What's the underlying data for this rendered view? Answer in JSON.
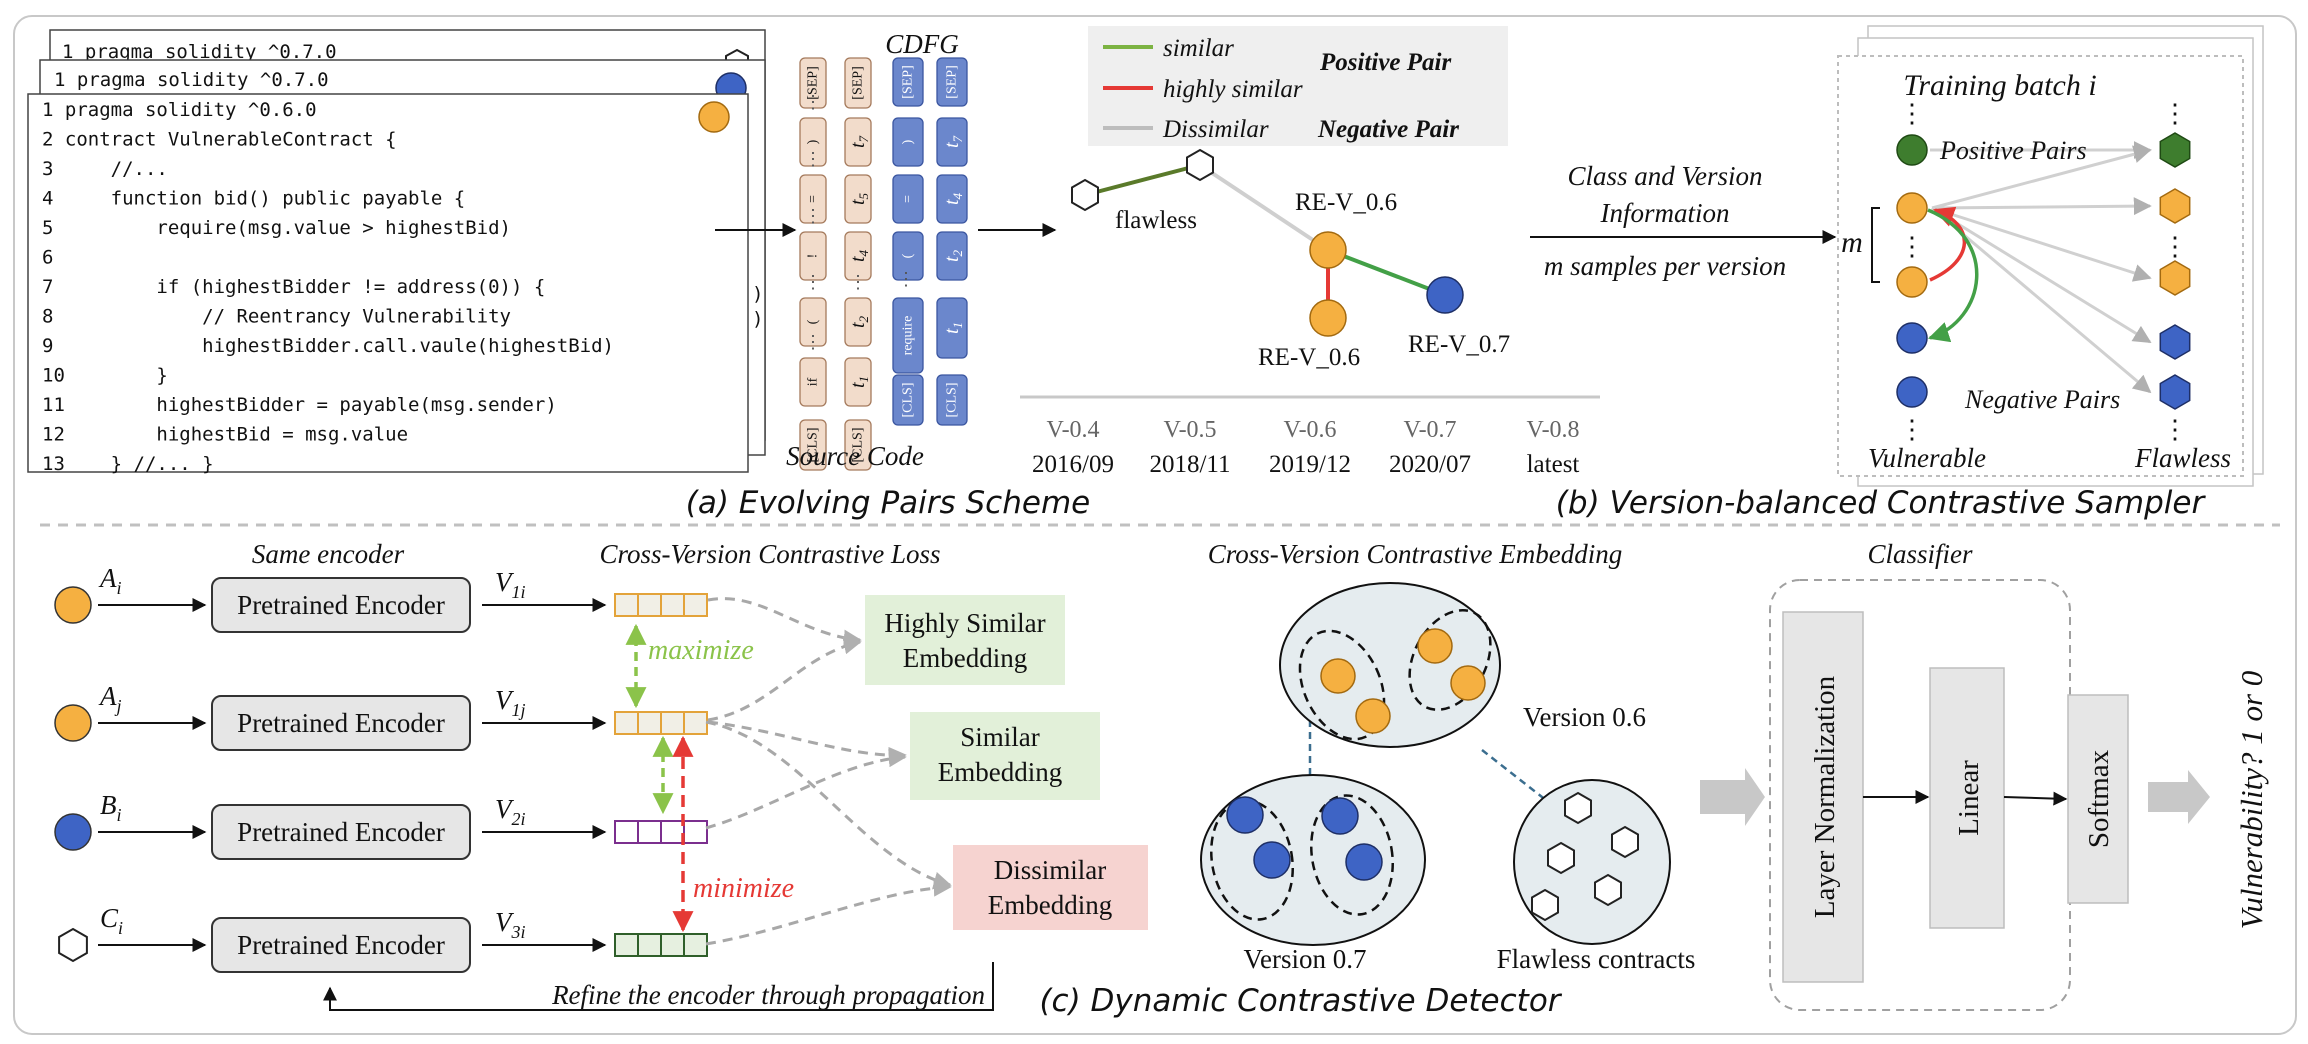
{
  "code_panel": {
    "back2_line": "1 pragma solidity ^0.7.0",
    "back1_line": "1 pragma solidity ^0.7.0",
    "lines": [
      "1 pragma solidity ^0.6.0",
      "2 contract VulnerableContract {",
      "3     //...",
      "4     function bid() public payable {",
      "5         require(msg.value > highestBid)",
      "6",
      "7         if (highestBidder != address(0)) {",
      "8             // Reentrancy Vulnerability",
      "9             highestBidder.call.vaule(highestBid)",
      "10        }",
      "11        highestBidder = payable(msg.sender)",
      "12        highestBid = msg.value",
      "13    } //... }"
    ]
  },
  "tokens": {
    "cdfg_title": "CDFG",
    "source_code_label": "Source Code",
    "source_col1": [
      "[SEP]",
      ")",
      "=",
      "!",
      "(",
      "if",
      "[CLS]"
    ],
    "source_col2": [
      "[SEP]",
      "t7",
      "t5",
      "t4",
      "t2",
      "t1",
      "[CLS]"
    ],
    "cdfg_col1": [
      "[SEP]",
      ")",
      "=",
      "(",
      "require",
      "[CLS]"
    ],
    "cdfg_col2": [
      "[SEP]",
      "t7",
      "t4",
      "t2",
      "t1",
      "[CLS]"
    ]
  },
  "legend": {
    "similar": "similar",
    "highly_similar": "highly similar",
    "dissimilar": "Dissimilar",
    "positive_pair": "Positive Pair",
    "negative_pair": "Negative Pair",
    "colors": {
      "similar": "#7cb342",
      "highly_similar": "#e53935",
      "dissimilar": "#bdbdbd"
    }
  },
  "evolving": {
    "flawless_label": "flawless",
    "re_v06_top": "RE-V_0.6",
    "re_v06_bottom": "RE-V_0.6",
    "re_v07": "RE-V_0.7",
    "timeline": [
      {
        "version": "V-0.4",
        "date": "2016/09"
      },
      {
        "version": "V-0.5",
        "date": "2018/11"
      },
      {
        "version": "V-0.6",
        "date": "2019/12"
      },
      {
        "version": "V-0.7",
        "date": "2020/07"
      },
      {
        "version": "V-0.8",
        "date": "latest"
      }
    ],
    "caption": "(a) Evolving Pairs Scheme"
  },
  "sampler": {
    "class_info_line1": "Class and Version",
    "class_info_line2": "Information",
    "m_samples": "m samples per version",
    "batch_title": "Training batch i",
    "positive_pairs": "Positive Pairs",
    "negative_pairs": "Negative Pairs",
    "m_label": "m",
    "vulnerable": "Vulnerable",
    "flawless": "Flawless",
    "caption": "(b) Version-balanced Contrastive Sampler"
  },
  "detector": {
    "same_encoder": "Same encoder",
    "inputs": [
      {
        "label": "A",
        "sub": "i",
        "shape": "circle",
        "color": "#f5b041"
      },
      {
        "label": "A",
        "sub": "j",
        "shape": "circle",
        "color": "#f5b041"
      },
      {
        "label": "B",
        "sub": "i",
        "shape": "circle",
        "color": "#3e64c5"
      },
      {
        "label": "C",
        "sub": "i",
        "shape": "hexagon",
        "color": "#ffffff"
      }
    ],
    "encoder_label": "Pretrained Encoder",
    "vectors": [
      {
        "label": "V",
        "sub": "1i"
      },
      {
        "label": "V",
        "sub": "1j"
      },
      {
        "label": "V",
        "sub": "2i"
      },
      {
        "label": "V",
        "sub": "3i"
      }
    ],
    "loss_title": "Cross-Version Contrastive Loss",
    "maximize": "maximize",
    "minimize": "minimize",
    "highly_similar_line1": "Highly Similar",
    "highly_similar_line2": "Embedding",
    "similar_line1": "Similar",
    "similar_line2": "Embedding",
    "dissimilar_line1": "Dissimilar",
    "dissimilar_line2": "Embedding",
    "refine": "Refine the encoder through propagation",
    "caption": "(c) Dynamic Contrastive Detector",
    "embedding_title": "Cross-Version Contrastive Embedding",
    "version_06": "Version 0.6",
    "version_07": "Version 0.7",
    "flawless_contracts": "Flawless contracts",
    "classifier_title": "Classifier",
    "layer_norm": "Layer Normalization",
    "linear": "Linear",
    "softmax": "Softmax",
    "output": "Vulnerability? 1 or 0"
  }
}
